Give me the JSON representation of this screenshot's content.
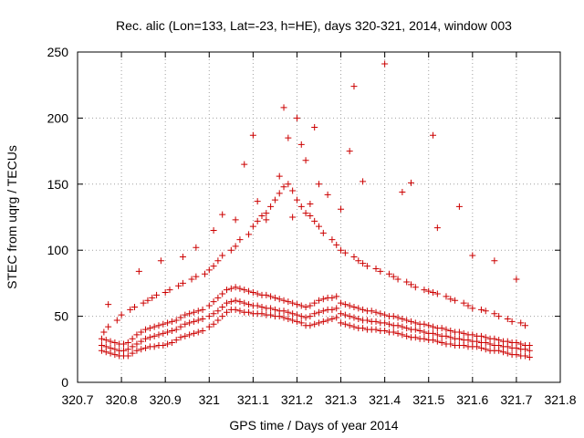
{
  "chart_data": {
    "type": "scatter",
    "title": "Rec. alic (Lon=133, Lat=-23, h=HE), days 320-321, 2014, window 003",
    "xlabel": "GPS time / Days of year 2014",
    "ylabel": "STEC from uqrg / TECUs",
    "xlim": [
      320.7,
      321.8
    ],
    "ylim": [
      0,
      250
    ],
    "xticks": [
      320.7,
      320.8,
      320.9,
      321,
      321.1,
      321.2,
      321.3,
      321.4,
      321.5,
      321.6,
      321.7,
      321.8
    ],
    "xtick_labels": [
      "320.7",
      "320.8",
      "320.9",
      "321",
      "321.1",
      "321.2",
      "321.3",
      "321.4",
      "321.5",
      "321.6",
      "321.7",
      "321.8"
    ],
    "yticks": [
      0,
      50,
      100,
      150,
      200,
      250
    ],
    "ytick_labels": [
      "0",
      "50",
      "100",
      "150",
      "200",
      "250"
    ],
    "grid": true,
    "marker": "plus",
    "color": "#cc0000",
    "series": [
      {
        "x": [
          320.755,
          320.765,
          320.775,
          320.785,
          320.795,
          320.805,
          320.815,
          320.825,
          320.835,
          320.845,
          320.855,
          320.865,
          320.875,
          320.885,
          320.895,
          320.905,
          320.915,
          320.925,
          320.935,
          320.945,
          320.955,
          320.965,
          320.975,
          320.985,
          321.0,
          321.01,
          321.02,
          321.03,
          321.04,
          321.05,
          321.06,
          321.07,
          321.08,
          321.09,
          321.1,
          321.11,
          321.12,
          321.13,
          321.14,
          321.15,
          321.16,
          321.17,
          321.18,
          321.19,
          321.2,
          321.21,
          321.22,
          321.23,
          321.24,
          321.25,
          321.26,
          321.27,
          321.28,
          321.29,
          321.3,
          321.31,
          321.32,
          321.33,
          321.34,
          321.35,
          321.36,
          321.37,
          321.38,
          321.39,
          321.4,
          321.41,
          321.42,
          321.43,
          321.44,
          321.45,
          321.46,
          321.47,
          321.48,
          321.49,
          321.5,
          321.51,
          321.52,
          321.53,
          321.54,
          321.55,
          321.56,
          321.57,
          321.58,
          321.59,
          321.6,
          321.61,
          321.62,
          321.63,
          321.64,
          321.65,
          321.66,
          321.67,
          321.68,
          321.69,
          321.7,
          321.71,
          321.72,
          321.73
        ],
        "y": [
          24,
          23,
          22,
          21,
          20,
          20,
          20,
          22,
          24,
          25,
          26,
          27,
          27,
          28,
          28,
          29,
          30,
          32,
          34,
          35,
          36,
          37,
          38,
          39,
          42,
          44,
          47,
          50,
          53,
          55,
          55,
          54,
          53,
          53,
          52,
          52,
          52,
          51,
          51,
          50,
          50,
          49,
          48,
          47,
          46,
          45,
          43,
          43,
          44,
          45,
          46,
          47,
          48,
          49,
          45,
          44,
          43,
          42,
          41,
          41,
          40,
          40,
          40,
          39,
          39,
          38,
          38,
          37,
          36,
          35,
          34,
          34,
          33,
          33,
          32,
          32,
          31,
          30,
          29,
          29,
          28,
          28,
          28,
          27,
          27,
          27,
          26,
          25,
          24,
          24,
          24,
          23,
          22,
          21,
          21,
          20,
          20,
          19
        ]
      },
      {
        "x": [
          320.755,
          320.765,
          320.775,
          320.785,
          320.795,
          320.805,
          320.815,
          320.825,
          320.835,
          320.845,
          320.855,
          320.865,
          320.875,
          320.885,
          320.895,
          320.905,
          320.915,
          320.925,
          320.935,
          320.945,
          320.955,
          320.965,
          320.975,
          320.985,
          321.0,
          321.01,
          321.02,
          321.03,
          321.04,
          321.05,
          321.06,
          321.07,
          321.08,
          321.09,
          321.1,
          321.11,
          321.12,
          321.13,
          321.14,
          321.15,
          321.16,
          321.17,
          321.18,
          321.19,
          321.2,
          321.21,
          321.22,
          321.23,
          321.24,
          321.25,
          321.26,
          321.27,
          321.28,
          321.29,
          321.3,
          321.31,
          321.32,
          321.33,
          321.34,
          321.35,
          321.36,
          321.37,
          321.38,
          321.39,
          321.4,
          321.41,
          321.42,
          321.43,
          321.44,
          321.45,
          321.46,
          321.47,
          321.48,
          321.49,
          321.5,
          321.51,
          321.52,
          321.53,
          321.54,
          321.55,
          321.56,
          321.57,
          321.58,
          321.59,
          321.6,
          321.61,
          321.62,
          321.63,
          321.64,
          321.65,
          321.66,
          321.67,
          321.68,
          321.69,
          321.7,
          321.71,
          321.72,
          321.73
        ],
        "y": [
          28,
          27,
          26,
          25,
          24,
          24,
          25,
          27,
          29,
          31,
          33,
          34,
          35,
          36,
          37,
          38,
          39,
          40,
          42,
          44,
          45,
          46,
          47,
          48,
          50,
          52,
          54,
          57,
          60,
          61,
          62,
          61,
          60,
          59,
          58,
          58,
          57,
          56,
          56,
          55,
          54,
          54,
          53,
          52,
          51,
          50,
          49,
          50,
          52,
          53,
          54,
          55,
          55,
          56,
          52,
          51,
          50,
          49,
          48,
          47,
          47,
          46,
          46,
          45,
          45,
          44,
          43,
          43,
          42,
          41,
          40,
          40,
          39,
          38,
          37,
          37,
          36,
          35,
          35,
          34,
          33,
          33,
          32,
          32,
          31,
          31,
          30,
          30,
          29,
          28,
          28,
          27,
          27,
          26,
          26,
          25,
          25,
          24
        ]
      },
      {
        "x": [
          320.755,
          320.765,
          320.775,
          320.785,
          320.795,
          320.805,
          320.815,
          320.825,
          320.835,
          320.845,
          320.855,
          320.865,
          320.875,
          320.885,
          320.895,
          320.905,
          320.915,
          320.925,
          320.935,
          320.945,
          320.955,
          320.965,
          320.975,
          320.985,
          321.0,
          321.01,
          321.02,
          321.03,
          321.04,
          321.05,
          321.06,
          321.07,
          321.08,
          321.09,
          321.1,
          321.11,
          321.12,
          321.13,
          321.14,
          321.15,
          321.16,
          321.17,
          321.18,
          321.19,
          321.2,
          321.21,
          321.22,
          321.23,
          321.24,
          321.25,
          321.26,
          321.27,
          321.28,
          321.29,
          321.3,
          321.31,
          321.32,
          321.33,
          321.34,
          321.35,
          321.36,
          321.37,
          321.38,
          321.39,
          321.4,
          321.41,
          321.42,
          321.43,
          321.44,
          321.45,
          321.46,
          321.47,
          321.48,
          321.49,
          321.5,
          321.51,
          321.52,
          321.53,
          321.54,
          321.55,
          321.56,
          321.57,
          321.58,
          321.59,
          321.6,
          321.61,
          321.62,
          321.63,
          321.64,
          321.65,
          321.66,
          321.67,
          321.68,
          321.69,
          321.7,
          321.71,
          321.72,
          321.73
        ],
        "y": [
          33,
          32,
          31,
          30,
          29,
          29,
          30,
          33,
          36,
          38,
          40,
          41,
          42,
          43,
          44,
          45,
          46,
          47,
          49,
          51,
          52,
          53,
          54,
          55,
          58,
          61,
          64,
          67,
          70,
          71,
          72,
          71,
          70,
          69,
          68,
          67,
          66,
          66,
          65,
          64,
          63,
          62,
          61,
          60,
          59,
          58,
          57,
          58,
          60,
          62,
          63,
          64,
          64,
          65,
          60,
          59,
          58,
          57,
          56,
          55,
          54,
          54,
          53,
          52,
          51,
          50,
          50,
          49,
          48,
          47,
          46,
          45,
          44,
          44,
          43,
          42,
          41,
          41,
          40,
          39,
          38,
          38,
          37,
          36,
          36,
          35,
          35,
          34,
          33,
          33,
          32,
          31,
          31,
          30,
          30,
          29,
          28,
          28
        ]
      },
      {
        "x": [
          320.76,
          320.77,
          320.79,
          320.8,
          320.82,
          320.83,
          320.85,
          320.86,
          320.87,
          320.88,
          320.9,
          320.91,
          320.93,
          320.94,
          320.96,
          320.97,
          320.99,
          321.0,
          321.01,
          321.02,
          321.03,
          321.05,
          321.06,
          321.07,
          321.09,
          321.1,
          321.11,
          321.12,
          321.13,
          321.14,
          321.15,
          321.16,
          321.17,
          321.18,
          321.19,
          321.2,
          321.21,
          321.22,
          321.23,
          321.24,
          321.25,
          321.26,
          321.28,
          321.29,
          321.3,
          321.31,
          321.33,
          321.34,
          321.35,
          321.36,
          321.38,
          321.39,
          321.41,
          321.42,
          321.43,
          321.45,
          321.46,
          321.47,
          321.49,
          321.5,
          321.51,
          321.52,
          321.54,
          321.55,
          321.56,
          321.58,
          321.59,
          321.6,
          321.62,
          321.63,
          321.65,
          321.66,
          321.68,
          321.69,
          321.71,
          321.72
        ],
        "y": [
          38,
          42,
          47,
          51,
          55,
          57,
          60,
          62,
          64,
          66,
          68,
          70,
          73,
          75,
          78,
          80,
          82,
          85,
          88,
          92,
          96,
          100,
          103,
          108,
          112,
          118,
          122,
          126,
          128,
          133,
          138,
          143,
          148,
          150,
          145,
          138,
          133,
          128,
          126,
          122,
          118,
          113,
          108,
          104,
          100,
          98,
          95,
          92,
          90,
          88,
          86,
          84,
          82,
          80,
          78,
          76,
          74,
          72,
          70,
          69,
          68,
          67,
          65,
          63,
          62,
          60,
          58,
          56,
          55,
          54,
          52,
          50,
          48,
          46,
          45,
          43
        ]
      },
      {
        "x": [
          320.77,
          320.84,
          320.89,
          320.94,
          320.97,
          321.01,
          321.03,
          321.06,
          321.08,
          321.1,
          321.11,
          321.13,
          321.16,
          321.17,
          321.18,
          321.19,
          321.2,
          321.21,
          321.22,
          321.23,
          321.24,
          321.25,
          321.27,
          321.3,
          321.32,
          321.33,
          321.35,
          321.4,
          321.44,
          321.46,
          321.51,
          321.52,
          321.57,
          321.6,
          321.65,
          321.7
        ],
        "y": [
          59,
          84,
          92,
          95,
          102,
          115,
          127,
          123,
          165,
          187,
          137,
          123,
          156,
          208,
          185,
          125,
          200,
          180,
          168,
          135,
          193,
          150,
          142,
          131,
          175,
          224,
          152,
          241,
          144,
          151,
          187,
          117,
          133,
          96,
          92,
          78
        ]
      }
    ]
  }
}
